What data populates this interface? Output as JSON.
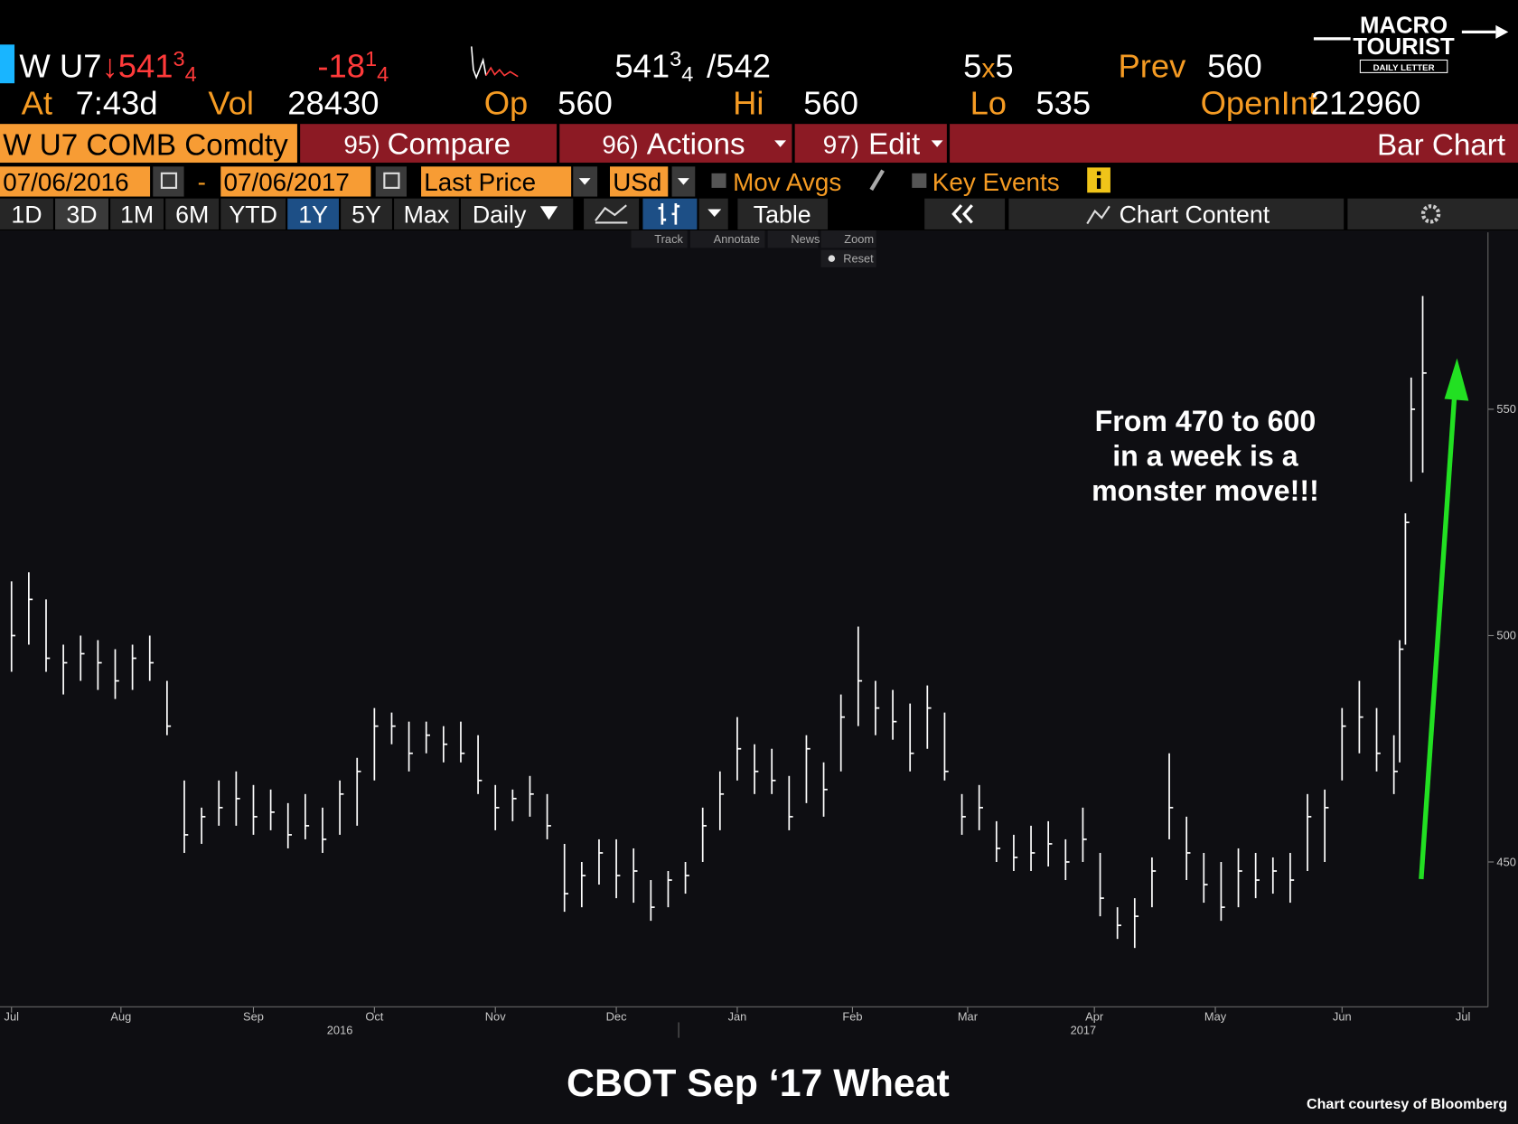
{
  "header": {
    "quote": {
      "ticker": "W U7",
      "arrow": "↓",
      "last": {
        "whole": "541",
        "num": "3",
        "den": "4"
      },
      "change": {
        "whole": "-18",
        "num": "1",
        "den": "4"
      },
      "bid": {
        "whole": "541",
        "num": "3",
        "den": "4"
      },
      "ask": "/542",
      "size_bid": "5",
      "size_sep": "x",
      "size_ask": "5",
      "prev_label": "Prev",
      "prev": "560"
    },
    "stats": [
      {
        "label": "At",
        "value": "7:43d"
      },
      {
        "label": "Vol",
        "value": "28430"
      },
      {
        "label": "Op",
        "value": "560"
      },
      {
        "label": "Hi",
        "value": "560"
      },
      {
        "label": "Lo",
        "value": "535"
      },
      {
        "label": "OpenInt",
        "value": "212960"
      }
    ],
    "logo": [
      "MACRO",
      "TOURIST",
      "DAILY LETTER"
    ],
    "menu": {
      "security": "W U7 COMB Comdty",
      "items": [
        {
          "num": "95)",
          "label": "Compare"
        },
        {
          "num": "96)",
          "label": "Actions"
        },
        {
          "num": "97)",
          "label": "Edit"
        }
      ],
      "view": "Bar Chart"
    },
    "controls": {
      "start": "07/06/2016",
      "dash": "-",
      "end": "07/06/2017",
      "field": "Last Price",
      "currency": "USd",
      "mov_avgs": "Mov Avgs",
      "key_events": "Key Events"
    },
    "periods": [
      "1D",
      "3D",
      "1M",
      "6M",
      "YTD",
      "1Y",
      "5Y",
      "Max"
    ],
    "frequency": "Daily",
    "table": "Table",
    "chart_content": "Chart Content",
    "tools": [
      "Track",
      "Annotate",
      "News",
      "Zoom"
    ],
    "reset": "Reset"
  },
  "chart_data": {
    "type": "hlc",
    "title": "CBOT Sep ‘17 Wheat",
    "credit": "Chart courtesy of Bloomberg",
    "annotation": [
      "From 470 to 600",
      "in a week is a",
      "monster move!!!"
    ],
    "color": "#ffffff",
    "annotation_arrow_color": "#22e022",
    "x": [
      0,
      3,
      6,
      9,
      12,
      15,
      18,
      21,
      24,
      27,
      30,
      33,
      36,
      39,
      42,
      45,
      48,
      51,
      54,
      57,
      60,
      63,
      66,
      69,
      72,
      75,
      78,
      81,
      84,
      87,
      90,
      93,
      96,
      99,
      102,
      105,
      108,
      111,
      114,
      117,
      120,
      123,
      126,
      129,
      132,
      135,
      138,
      141,
      144,
      147,
      150,
      153,
      156,
      159,
      162,
      165,
      168,
      171,
      174,
      177,
      180,
      183,
      186,
      189,
      192,
      195,
      198,
      201,
      204,
      207,
      210,
      213,
      216,
      219,
      222,
      225,
      228,
      231,
      234,
      237,
      240,
      241,
      242,
      243,
      245
    ],
    "high": [
      512,
      514,
      508,
      498,
      500,
      499,
      497,
      498,
      500,
      490,
      468,
      462,
      468,
      470,
      467,
      466,
      463,
      465,
      462,
      468,
      473,
      484,
      483,
      481,
      481,
      480,
      481,
      478,
      467,
      466,
      469,
      465,
      454,
      450,
      455,
      455,
      453,
      446,
      448,
      450,
      462,
      470,
      482,
      476,
      475,
      469,
      478,
      472,
      487,
      502,
      490,
      488,
      485,
      489,
      483,
      465,
      467,
      459,
      456,
      458,
      459,
      455,
      462,
      452,
      440,
      442,
      451,
      474,
      460,
      452,
      450,
      453,
      452,
      451,
      452,
      465,
      466,
      484,
      490,
      484,
      478,
      499,
      527,
      557,
      575
    ],
    "low": [
      492,
      498,
      492,
      487,
      490,
      488,
      486,
      488,
      490,
      478,
      452,
      454,
      458,
      458,
      456,
      457,
      453,
      455,
      452,
      456,
      458,
      468,
      476,
      470,
      474,
      472,
      472,
      465,
      457,
      459,
      460,
      455,
      439,
      440,
      445,
      442,
      441,
      437,
      440,
      443,
      450,
      457,
      468,
      465,
      465,
      457,
      463,
      460,
      470,
      480,
      478,
      477,
      470,
      475,
      468,
      456,
      457,
      450,
      448,
      448,
      449,
      446,
      450,
      438,
      433,
      431,
      440,
      455,
      446,
      441,
      437,
      440,
      442,
      443,
      441,
      448,
      450,
      468,
      474,
      470,
      465,
      472,
      498,
      534,
      536
    ],
    "close": [
      500,
      508,
      495,
      494,
      496,
      494,
      490,
      495,
      494,
      480,
      456,
      460,
      462,
      464,
      460,
      461,
      456,
      458,
      455,
      465,
      470,
      480,
      480,
      474,
      478,
      476,
      474,
      468,
      462,
      464,
      465,
      458,
      443,
      447,
      452,
      447,
      448,
      440,
      446,
      447,
      458,
      465,
      475,
      470,
      468,
      460,
      475,
      466,
      482,
      490,
      484,
      481,
      474,
      484,
      470,
      460,
      462,
      453,
      451,
      452,
      454,
      450,
      455,
      442,
      436,
      438,
      448,
      462,
      452,
      445,
      440,
      448,
      446,
      448,
      446,
      460,
      462,
      480,
      482,
      474,
      470,
      497,
      525,
      550,
      558
    ],
    "xlim": [
      -2,
      256
    ],
    "xticks": [
      {
        "value": 0,
        "label": "Jul"
      },
      {
        "value": 19,
        "label": "Aug"
      },
      {
        "value": 42,
        "label": "Sep"
      },
      {
        "value": 63,
        "label": "Oct"
      },
      {
        "value": 84,
        "label": "Nov"
      },
      {
        "value": 105,
        "label": "Dec"
      },
      {
        "value": 126,
        "label": "Jan"
      },
      {
        "value": 146,
        "label": "Feb"
      },
      {
        "value": 166,
        "label": "Mar"
      },
      {
        "value": 188,
        "label": "Apr"
      },
      {
        "value": 209,
        "label": "May"
      },
      {
        "value": 231,
        "label": "Jun"
      },
      {
        "value": 252,
        "label": "Jul"
      }
    ],
    "year_labels": [
      "2016",
      "2017"
    ],
    "ylim": [
      418,
      588
    ],
    "yticks": [
      450,
      500,
      550
    ]
  }
}
